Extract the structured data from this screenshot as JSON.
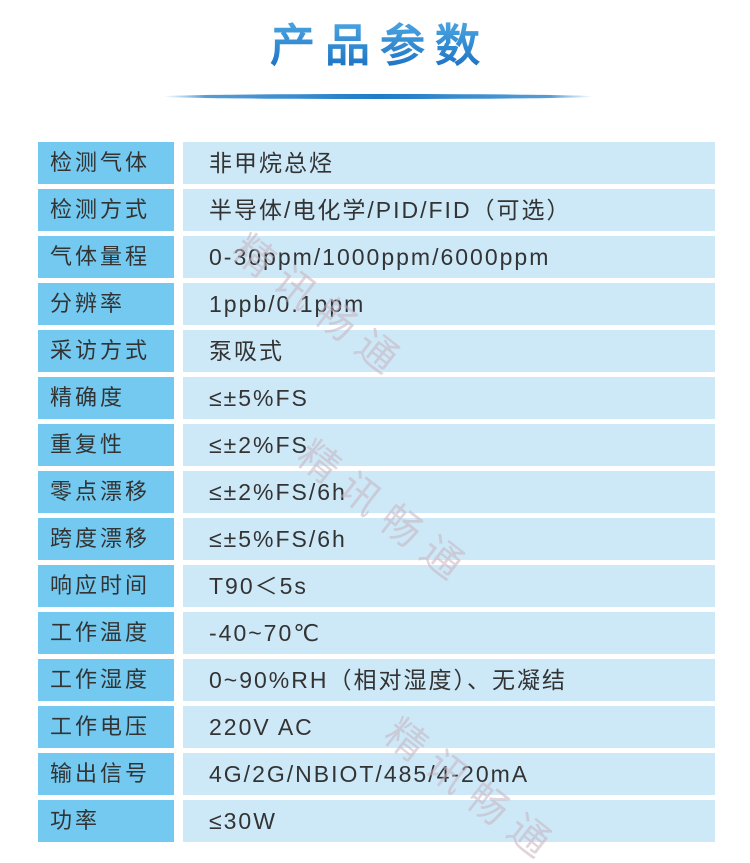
{
  "page": {
    "title": "产品参数"
  },
  "watermark": {
    "text": "精讯畅通"
  },
  "colors": {
    "title_gradient_top": "#4ba6e2",
    "title_gradient_bottom": "#1a6fc2",
    "divider_blue": "#1e7cc8",
    "label_cell_bg": "#73c9ef",
    "value_cell_bg": "#cde9f8",
    "cell_text": "#333333",
    "watermark_color": "rgba(200,178,190,0.55)"
  },
  "table": {
    "rows": [
      {
        "label": "检测气体",
        "value": "非甲烷总烃"
      },
      {
        "label": "检测方式",
        "value": "半导体/电化学/PID/FID（可选）"
      },
      {
        "label": "气体量程",
        "value": "0-30ppm/1000ppm/6000ppm"
      },
      {
        "label": "分辨率",
        "value": "1ppb/0.1ppm"
      },
      {
        "label": "采访方式",
        "value": "泵吸式"
      },
      {
        "label": "精确度",
        "value": "≤±5%FS"
      },
      {
        "label": "重复性",
        "value": "≤±2%FS"
      },
      {
        "label": "零点漂移",
        "value": "≤±2%FS/6h"
      },
      {
        "label": "跨度漂移",
        "value": "≤±5%FS/6h"
      },
      {
        "label": "响应时间",
        "value": "T90＜5s"
      },
      {
        "label": "工作温度",
        "value": "-40~70℃"
      },
      {
        "label": "工作湿度",
        "value": "0~90%RH（相对湿度）、无凝结"
      },
      {
        "label": "工作电压",
        "value": "220V AC"
      },
      {
        "label": "输出信号",
        "value": "4G/2G/NBIOT/485/4-20mA"
      },
      {
        "label": "功率",
        "value": "≤30W"
      }
    ]
  }
}
